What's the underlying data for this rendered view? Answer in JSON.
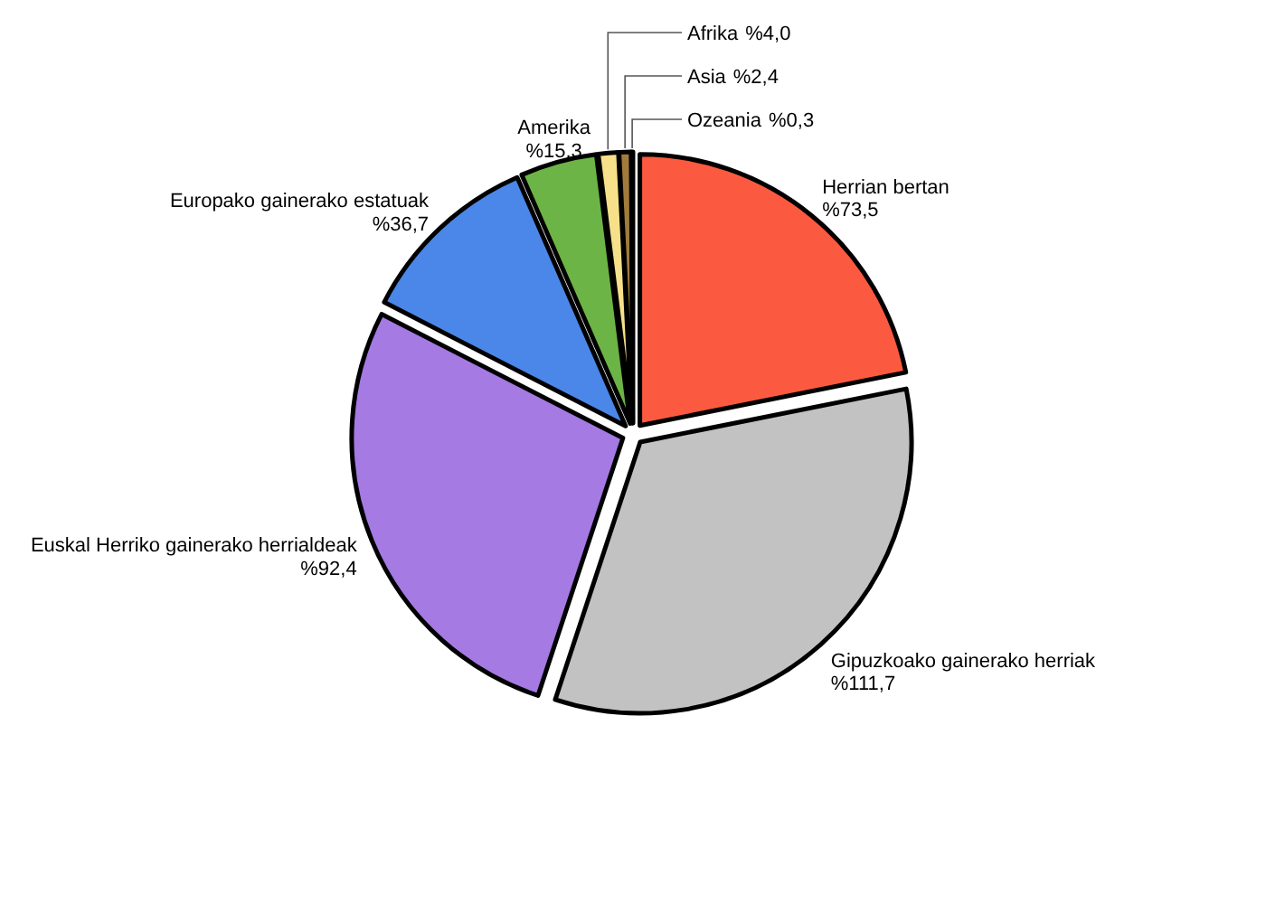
{
  "chart_data": {
    "type": "pie",
    "categories": [
      "Herrian bertan",
      "Gipuzkoako gainerako herriak",
      "Euskal Herriko gainerako herrialdeak",
      "Europako gainerako estatuak",
      "Amerika",
      "Afrika",
      "Asia",
      "Ozeania"
    ],
    "values": [
      73.5,
      111.7,
      92.4,
      36.7,
      15.3,
      4.0,
      2.4,
      0.3
    ],
    "value_labels": [
      "%73,5",
      "%111,7",
      "%92,4",
      "%36,7",
      "%15,3",
      "%4,0",
      "%2,4",
      "%0,3"
    ],
    "colors": [
      "#fc5a40",
      "#c2c2c2",
      "#a57ae2",
      "#4a87e8",
      "#6db446",
      "#f7e08a",
      "#a07b3c",
      "#3a3a3a"
    ]
  }
}
